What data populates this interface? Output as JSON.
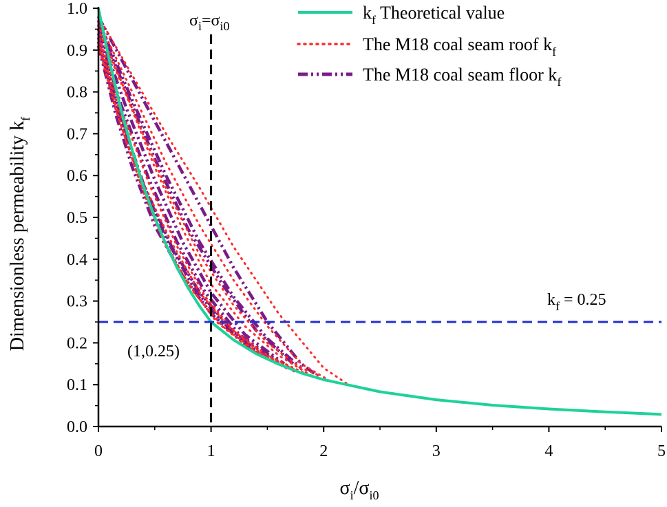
{
  "chart_data": {
    "type": "line",
    "title": "",
    "xlabel": {
      "base": "σ",
      "sub1": "i",
      "slash": "/σ",
      "sub2": "i0"
    },
    "ylabel": {
      "text": "Dimensionless permeability k",
      "sub": "f"
    },
    "xlim": [
      0,
      5
    ],
    "ylim": [
      0,
      1.0
    ],
    "x_ticks": [
      0,
      1,
      2,
      3,
      4,
      5
    ],
    "y_ticks": [
      0.0,
      0.1,
      0.2,
      0.3,
      0.4,
      0.5,
      0.6,
      0.7,
      0.8,
      0.9,
      1.0
    ],
    "legend": {
      "position": "top-right",
      "entries": [
        {
          "label_pre": "k",
          "label_sub": "f",
          "label_post": " Theoretical value",
          "style": "solid",
          "color": "#1fd19a"
        },
        {
          "label_pre": "The M18 coal seam roof  k",
          "label_sub": "f",
          "label_post": "",
          "style": "dotted",
          "color": "#ff2a2a"
        },
        {
          "label_pre": "The M18 coal seam floor k",
          "label_sub": "f",
          "label_post": "",
          "style": "dash-dot-dot",
          "color": "#7b1b8a"
        }
      ]
    },
    "series": [
      {
        "name": "kf Theoretical value",
        "color": "#1fd19a",
        "x": [
          0,
          0.1,
          0.2,
          0.3,
          0.4,
          0.5,
          0.6,
          0.7,
          0.8,
          0.9,
          1.0,
          1.2,
          1.4,
          1.6,
          1.8,
          2.0,
          2.5,
          3.0,
          3.5,
          4.0,
          4.5,
          5.0
        ],
        "y": [
          1.0,
          0.871,
          0.758,
          0.66,
          0.574,
          0.5,
          0.435,
          0.379,
          0.33,
          0.287,
          0.25,
          0.207,
          0.174,
          0.149,
          0.128,
          0.112,
          0.083,
          0.064,
          0.051,
          0.042,
          0.035,
          0.029
        ]
      },
      {
        "name": "The M18 coal seam roof kf",
        "color": "#ff2a2a",
        "curves": [
          {
            "x": [
              0.0,
              0.3,
              0.6,
              0.9,
              1.2,
              1.6,
              2.0,
              2.22
            ],
            "y": [
              0.98,
              0.84,
              0.7,
              0.57,
              0.43,
              0.27,
              0.14,
              0.1
            ]
          },
          {
            "x": [
              0.0,
              0.3,
              0.6,
              0.9,
              1.2,
              1.5,
              1.8,
              2.05
            ],
            "y": [
              0.97,
              0.8,
              0.63,
              0.48,
              0.35,
              0.24,
              0.15,
              0.11
            ]
          },
          {
            "x": [
              0.0,
              0.3,
              0.6,
              0.9,
              1.2,
              1.5,
              1.8,
              1.98
            ],
            "y": [
              0.96,
              0.76,
              0.57,
              0.41,
              0.29,
              0.2,
              0.14,
              0.12
            ]
          },
          {
            "x": [
              0.0,
              0.25,
              0.5,
              0.75,
              1.0,
              1.3,
              1.6,
              1.9
            ],
            "y": [
              0.95,
              0.79,
              0.62,
              0.47,
              0.34,
              0.24,
              0.17,
              0.12
            ]
          },
          {
            "x": [
              0.0,
              0.2,
              0.45,
              0.7,
              0.95,
              1.2,
              1.5,
              1.85
            ],
            "y": [
              0.94,
              0.76,
              0.58,
              0.43,
              0.31,
              0.23,
              0.17,
              0.125
            ]
          },
          {
            "x": [
              0.0,
              0.2,
              0.4,
              0.65,
              0.9,
              1.15,
              1.45,
              1.8
            ],
            "y": [
              0.93,
              0.74,
              0.58,
              0.44,
              0.32,
              0.24,
              0.175,
              0.128
            ]
          },
          {
            "x": [
              0.0,
              0.2,
              0.4,
              0.6,
              0.85,
              1.1,
              1.4,
              1.75
            ],
            "y": [
              0.92,
              0.72,
              0.56,
              0.43,
              0.32,
              0.24,
              0.18,
              0.13
            ]
          },
          {
            "x": [
              0.0,
              0.15,
              0.35,
              0.55,
              0.8,
              1.05,
              1.35,
              1.7
            ],
            "y": [
              0.91,
              0.76,
              0.6,
              0.46,
              0.34,
              0.25,
              0.185,
              0.135
            ]
          }
        ]
      },
      {
        "name": "The M18 coal seam floor kf",
        "color": "#7b1b8a",
        "curves": [
          {
            "x": [
              0.0,
              0.3,
              0.6,
              0.9,
              1.2,
              1.5,
              1.8,
              1.95
            ],
            "y": [
              0.98,
              0.83,
              0.68,
              0.53,
              0.38,
              0.25,
              0.15,
              0.12
            ]
          },
          {
            "x": [
              0.0,
              0.3,
              0.6,
              0.9,
              1.2,
              1.5,
              1.8
            ],
            "y": [
              0.97,
              0.78,
              0.6,
              0.44,
              0.31,
              0.21,
              0.14
            ]
          },
          {
            "x": [
              0.0,
              0.25,
              0.5,
              0.8,
              1.1,
              1.4,
              1.75
            ],
            "y": [
              0.96,
              0.8,
              0.64,
              0.47,
              0.34,
              0.23,
              0.145
            ]
          },
          {
            "x": [
              0.0,
              0.25,
              0.5,
              0.75,
              1.0,
              1.3,
              1.65
            ],
            "y": [
              0.95,
              0.76,
              0.59,
              0.44,
              0.32,
              0.22,
              0.15
            ]
          },
          {
            "x": [
              0.0,
              0.2,
              0.45,
              0.7,
              0.95,
              1.25,
              1.6
            ],
            "y": [
              0.94,
              0.77,
              0.59,
              0.44,
              0.32,
              0.22,
              0.155
            ]
          },
          {
            "x": [
              0.0,
              0.2,
              0.4,
              0.65,
              0.9,
              1.2,
              1.55
            ],
            "y": [
              0.93,
              0.74,
              0.58,
              0.43,
              0.32,
              0.225,
              0.16
            ]
          },
          {
            "x": [
              0.0,
              0.15,
              0.35,
              0.6,
              0.85,
              1.1,
              1.45
            ],
            "y": [
              0.92,
              0.77,
              0.61,
              0.45,
              0.33,
              0.25,
              0.17
            ]
          },
          {
            "x": [
              0.0,
              0.15,
              0.3,
              0.5,
              0.75,
              1.0,
              1.35
            ],
            "y": [
              0.91,
              0.75,
              0.62,
              0.48,
              0.36,
              0.27,
              0.185
            ]
          }
        ]
      }
    ],
    "reference_lines": {
      "vertical": {
        "x": 1,
        "label": {
          "base1": "σ",
          "sub1": "i",
          "eq": "=σ",
          "sub2": "i0"
        },
        "color": "#000000"
      },
      "horizontal": {
        "y": 0.25,
        "label": {
          "pre": "k",
          "sub": "f",
          "post": " = 0.25"
        },
        "color": "#1f2fd6"
      }
    },
    "annotation": {
      "text": "(1,0.25)",
      "x": 1,
      "y": 0.25
    }
  }
}
